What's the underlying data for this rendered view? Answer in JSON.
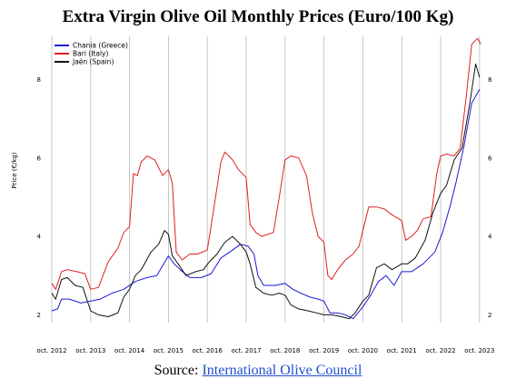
{
  "chart_data": {
    "type": "line",
    "title": "Extra Virgin Olive Oil Monthly Prices (Euro/100 Kg)",
    "ylabel": "Price (€/kg)",
    "xlabel": "",
    "ylim": [
      1.8,
      9.1
    ],
    "yticks": [
      2,
      4,
      6,
      8
    ],
    "xlim": [
      2012.75,
      2023.8
    ],
    "xticks": [
      {
        "x": 2012.75,
        "label": "oct. 2012"
      },
      {
        "x": 2013.75,
        "label": "oct. 2013"
      },
      {
        "x": 2014.75,
        "label": "oct. 2014"
      },
      {
        "x": 2015.75,
        "label": "oct. 2015"
      },
      {
        "x": 2016.75,
        "label": "oct. 2016"
      },
      {
        "x": 2017.75,
        "label": "oct. 2017"
      },
      {
        "x": 2018.75,
        "label": "oct. 2018"
      },
      {
        "x": 2019.75,
        "label": "oct. 2019"
      },
      {
        "x": 2020.75,
        "label": "oct. 2020"
      },
      {
        "x": 2021.75,
        "label": "oct. 2021"
      },
      {
        "x": 2022.75,
        "label": "oct. 2022"
      },
      {
        "x": 2023.75,
        "label": "oct. 2023"
      }
    ],
    "grid": "vertical",
    "legend": "top-left",
    "series": [
      {
        "name": "Chania (Greece)",
        "color": "#1a1ad6",
        "points": [
          [
            2012.75,
            2.1
          ],
          [
            2012.9,
            2.15
          ],
          [
            2013.0,
            2.4
          ],
          [
            2013.2,
            2.4
          ],
          [
            2013.5,
            2.3
          ],
          [
            2013.75,
            2.35
          ],
          [
            2014.0,
            2.4
          ],
          [
            2014.3,
            2.55
          ],
          [
            2014.6,
            2.65
          ],
          [
            2014.9,
            2.85
          ],
          [
            2015.2,
            2.95
          ],
          [
            2015.45,
            3.0
          ],
          [
            2015.6,
            3.25
          ],
          [
            2015.75,
            3.5
          ],
          [
            2015.9,
            3.3
          ],
          [
            2016.05,
            3.15
          ],
          [
            2016.3,
            2.95
          ],
          [
            2016.6,
            2.95
          ],
          [
            2016.85,
            3.05
          ],
          [
            2017.1,
            3.45
          ],
          [
            2017.4,
            3.65
          ],
          [
            2017.6,
            3.8
          ],
          [
            2017.8,
            3.75
          ],
          [
            2017.95,
            3.55
          ],
          [
            2018.05,
            3.0
          ],
          [
            2018.2,
            2.75
          ],
          [
            2018.5,
            2.75
          ],
          [
            2018.75,
            2.8
          ],
          [
            2018.95,
            2.65
          ],
          [
            2019.15,
            2.55
          ],
          [
            2019.4,
            2.45
          ],
          [
            2019.6,
            2.4
          ],
          [
            2019.75,
            2.35
          ],
          [
            2019.9,
            2.05
          ],
          [
            2020.1,
            2.05
          ],
          [
            2020.3,
            2.0
          ],
          [
            2020.5,
            1.9
          ],
          [
            2020.75,
            2.2
          ],
          [
            2020.95,
            2.5
          ],
          [
            2021.15,
            2.85
          ],
          [
            2021.35,
            3.0
          ],
          [
            2021.55,
            2.75
          ],
          [
            2021.75,
            3.1
          ],
          [
            2022.0,
            3.1
          ],
          [
            2022.3,
            3.3
          ],
          [
            2022.6,
            3.6
          ],
          [
            2022.8,
            4.1
          ],
          [
            2023.0,
            4.8
          ],
          [
            2023.15,
            5.4
          ],
          [
            2023.35,
            6.3
          ],
          [
            2023.55,
            7.4
          ],
          [
            2023.75,
            7.75
          ]
        ]
      },
      {
        "name": "Bari (Italy)",
        "color": "#e02020",
        "points": [
          [
            2012.75,
            2.8
          ],
          [
            2012.85,
            2.65
          ],
          [
            2013.0,
            3.1
          ],
          [
            2013.15,
            3.15
          ],
          [
            2013.4,
            3.1
          ],
          [
            2013.6,
            3.05
          ],
          [
            2013.75,
            2.65
          ],
          [
            2013.95,
            2.7
          ],
          [
            2014.2,
            3.35
          ],
          [
            2014.45,
            3.7
          ],
          [
            2014.6,
            4.1
          ],
          [
            2014.75,
            4.25
          ],
          [
            2014.85,
            5.6
          ],
          [
            2014.95,
            5.55
          ],
          [
            2015.05,
            5.9
          ],
          [
            2015.2,
            6.05
          ],
          [
            2015.4,
            5.95
          ],
          [
            2015.6,
            5.55
          ],
          [
            2015.75,
            5.7
          ],
          [
            2015.85,
            5.35
          ],
          [
            2015.95,
            3.6
          ],
          [
            2016.1,
            3.4
          ],
          [
            2016.3,
            3.55
          ],
          [
            2016.5,
            3.55
          ],
          [
            2016.75,
            3.65
          ],
          [
            2016.9,
            4.6
          ],
          [
            2017.1,
            5.9
          ],
          [
            2017.2,
            6.15
          ],
          [
            2017.4,
            5.95
          ],
          [
            2017.55,
            5.7
          ],
          [
            2017.75,
            5.5
          ],
          [
            2017.85,
            4.3
          ],
          [
            2018.0,
            4.1
          ],
          [
            2018.15,
            4.0
          ],
          [
            2018.3,
            4.05
          ],
          [
            2018.45,
            4.1
          ],
          [
            2018.6,
            5.0
          ],
          [
            2018.75,
            5.95
          ],
          [
            2018.9,
            6.05
          ],
          [
            2019.1,
            6.0
          ],
          [
            2019.3,
            5.55
          ],
          [
            2019.45,
            4.6
          ],
          [
            2019.6,
            4.0
          ],
          [
            2019.75,
            3.85
          ],
          [
            2019.85,
            3.0
          ],
          [
            2019.95,
            2.9
          ],
          [
            2020.1,
            3.15
          ],
          [
            2020.3,
            3.4
          ],
          [
            2020.5,
            3.55
          ],
          [
            2020.65,
            3.75
          ],
          [
            2020.75,
            4.15
          ],
          [
            2020.9,
            4.75
          ],
          [
            2021.1,
            4.75
          ],
          [
            2021.3,
            4.7
          ],
          [
            2021.5,
            4.55
          ],
          [
            2021.75,
            4.4
          ],
          [
            2021.85,
            3.9
          ],
          [
            2022.0,
            4.0
          ],
          [
            2022.15,
            4.15
          ],
          [
            2022.3,
            4.45
          ],
          [
            2022.5,
            4.5
          ],
          [
            2022.65,
            5.6
          ],
          [
            2022.75,
            6.05
          ],
          [
            2022.9,
            6.1
          ],
          [
            2023.1,
            6.05
          ],
          [
            2023.25,
            6.25
          ],
          [
            2023.4,
            7.5
          ],
          [
            2023.55,
            8.9
          ],
          [
            2023.7,
            9.05
          ],
          [
            2023.78,
            8.9
          ]
        ]
      },
      {
        "name": "Jaén (Spain)",
        "color": "#111111",
        "points": [
          [
            2012.75,
            2.55
          ],
          [
            2012.85,
            2.4
          ],
          [
            2013.0,
            2.9
          ],
          [
            2013.15,
            2.95
          ],
          [
            2013.35,
            2.75
          ],
          [
            2013.55,
            2.7
          ],
          [
            2013.75,
            2.1
          ],
          [
            2013.95,
            2.0
          ],
          [
            2014.2,
            1.95
          ],
          [
            2014.45,
            2.05
          ],
          [
            2014.6,
            2.45
          ],
          [
            2014.75,
            2.65
          ],
          [
            2014.9,
            3.0
          ],
          [
            2015.05,
            3.15
          ],
          [
            2015.3,
            3.6
          ],
          [
            2015.5,
            3.8
          ],
          [
            2015.65,
            4.15
          ],
          [
            2015.75,
            4.05
          ],
          [
            2015.85,
            3.5
          ],
          [
            2016.0,
            3.3
          ],
          [
            2016.2,
            3.0
          ],
          [
            2016.45,
            3.1
          ],
          [
            2016.65,
            3.15
          ],
          [
            2016.8,
            3.35
          ],
          [
            2017.0,
            3.55
          ],
          [
            2017.2,
            3.85
          ],
          [
            2017.4,
            4.0
          ],
          [
            2017.6,
            3.8
          ],
          [
            2017.75,
            3.6
          ],
          [
            2017.85,
            3.3
          ],
          [
            2018.0,
            2.7
          ],
          [
            2018.2,
            2.55
          ],
          [
            2018.4,
            2.5
          ],
          [
            2018.6,
            2.55
          ],
          [
            2018.75,
            2.5
          ],
          [
            2018.9,
            2.25
          ],
          [
            2019.1,
            2.15
          ],
          [
            2019.35,
            2.1
          ],
          [
            2019.55,
            2.05
          ],
          [
            2019.75,
            2.0
          ],
          [
            2019.95,
            2.0
          ],
          [
            2020.2,
            1.95
          ],
          [
            2020.4,
            1.9
          ],
          [
            2020.55,
            2.05
          ],
          [
            2020.75,
            2.35
          ],
          [
            2020.9,
            2.5
          ],
          [
            2021.1,
            3.2
          ],
          [
            2021.3,
            3.3
          ],
          [
            2021.5,
            3.15
          ],
          [
            2021.75,
            3.3
          ],
          [
            2021.9,
            3.3
          ],
          [
            2022.1,
            3.45
          ],
          [
            2022.35,
            3.9
          ],
          [
            2022.55,
            4.6
          ],
          [
            2022.75,
            5.1
          ],
          [
            2022.9,
            5.3
          ],
          [
            2023.1,
            5.95
          ],
          [
            2023.3,
            6.25
          ],
          [
            2023.5,
            7.4
          ],
          [
            2023.65,
            8.4
          ],
          [
            2023.75,
            8.05
          ]
        ]
      }
    ]
  },
  "source": {
    "prefix": "Source: ",
    "link_text": "International Olive Council"
  }
}
